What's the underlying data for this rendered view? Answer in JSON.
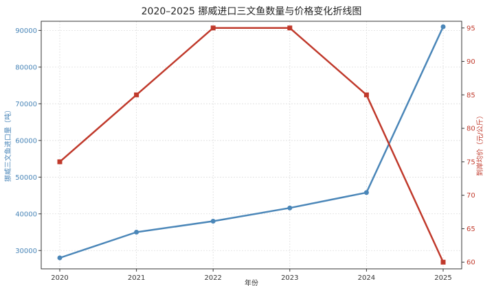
{
  "chart_data": {
    "type": "line",
    "title": "2020–2025 挪威进口三文鱼数量与价格变化折线图",
    "xlabel": "年份",
    "ylabel_left": "挪威三文鱼进口量（吨）",
    "ylabel_right": "到岸均价（元/公斤）",
    "categories": [
      "2020",
      "2021",
      "2022",
      "2023",
      "2024",
      "2025"
    ],
    "ylim_left": [
      25000,
      92500
    ],
    "ylim_right": [
      59,
      96
    ],
    "yticks_left": [
      "30000",
      "40000",
      "50000",
      "60000",
      "70000",
      "80000",
      "90000"
    ],
    "yticks_right": [
      "60",
      "65",
      "70",
      "75",
      "80",
      "85",
      "90",
      "95"
    ],
    "grid": true,
    "series": [
      {
        "axis": "left",
        "color": "#4a86b8",
        "marker": "circle",
        "values": [
          28000,
          35000,
          38000,
          41600,
          45800,
          91000
        ]
      },
      {
        "axis": "right",
        "color": "#c0392b",
        "marker": "square",
        "values": [
          75,
          85,
          95,
          95,
          85,
          60
        ]
      }
    ]
  }
}
